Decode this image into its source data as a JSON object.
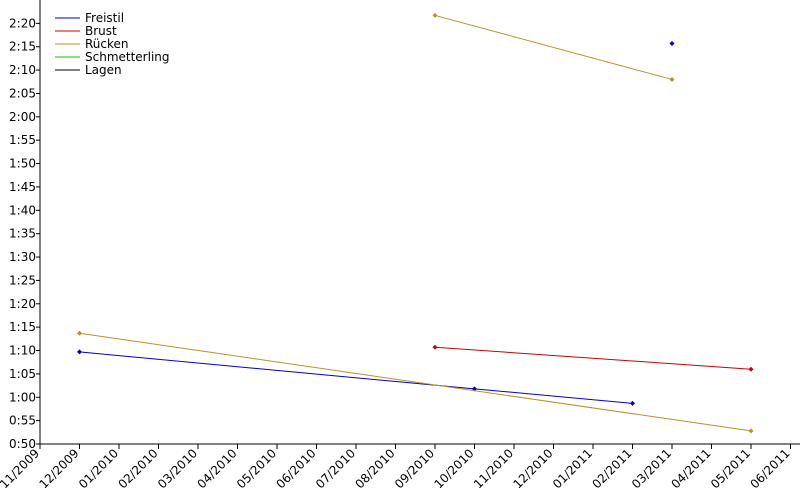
{
  "chart_data": {
    "type": "line",
    "categories": [
      "11/2009",
      "12/2009",
      "01/2010",
      "02/2010",
      "03/2010",
      "04/2010",
      "05/2010",
      "06/2010",
      "07/2010",
      "08/2010",
      "09/2010",
      "10/2010",
      "11/2010",
      "12/2010",
      "01/2011",
      "02/2011",
      "03/2011",
      "04/2011",
      "05/2011",
      "06/2011"
    ],
    "series": [
      {
        "name": "Freistil",
        "color": "#0000cc",
        "x": [
          "12/2009",
          "10/2010",
          "02/2011",
          null,
          "03/2011"
        ],
        "values": [
          69.7,
          61.8,
          58.7,
          null,
          135.7
        ]
      },
      {
        "name": "Brust",
        "color": "#cc0000",
        "x": [
          "09/2010",
          "05/2011"
        ],
        "values": [
          70.7,
          66.0
        ]
      },
      {
        "name": "Rücken",
        "color": "#b8922a",
        "x": [
          "12/2009",
          "05/2011",
          null,
          "09/2010",
          "03/2011"
        ],
        "values": [
          73.7,
          52.8,
          null,
          141.7,
          128.0
        ]
      },
      {
        "name": "Schmetterling",
        "color": "#00cc00",
        "x": [],
        "values": []
      },
      {
        "name": "Lagen",
        "color": "#000000",
        "x": [],
        "values": []
      }
    ],
    "ylim": [
      50,
      145
    ],
    "yticks": [
      {
        "value": 50,
        "label": "0:50"
      },
      {
        "value": 55,
        "label": "0:55"
      },
      {
        "value": 60,
        "label": "1:00"
      },
      {
        "value": 65,
        "label": "1:05"
      },
      {
        "value": 70,
        "label": "1:10"
      },
      {
        "value": 75,
        "label": "1:15"
      },
      {
        "value": 80,
        "label": "1:20"
      },
      {
        "value": 85,
        "label": "1:25"
      },
      {
        "value": 90,
        "label": "1:30"
      },
      {
        "value": 95,
        "label": "1:35"
      },
      {
        "value": 100,
        "label": "1:40"
      },
      {
        "value": 105,
        "label": "1:45"
      },
      {
        "value": 110,
        "label": "1:50"
      },
      {
        "value": 115,
        "label": "1:55"
      },
      {
        "value": 120,
        "label": "2:00"
      },
      {
        "value": 125,
        "label": "2:05"
      },
      {
        "value": 130,
        "label": "2:10"
      },
      {
        "value": 135,
        "label": "2:15"
      },
      {
        "value": 140,
        "label": "2:20"
      }
    ],
    "legend": "upper left"
  }
}
